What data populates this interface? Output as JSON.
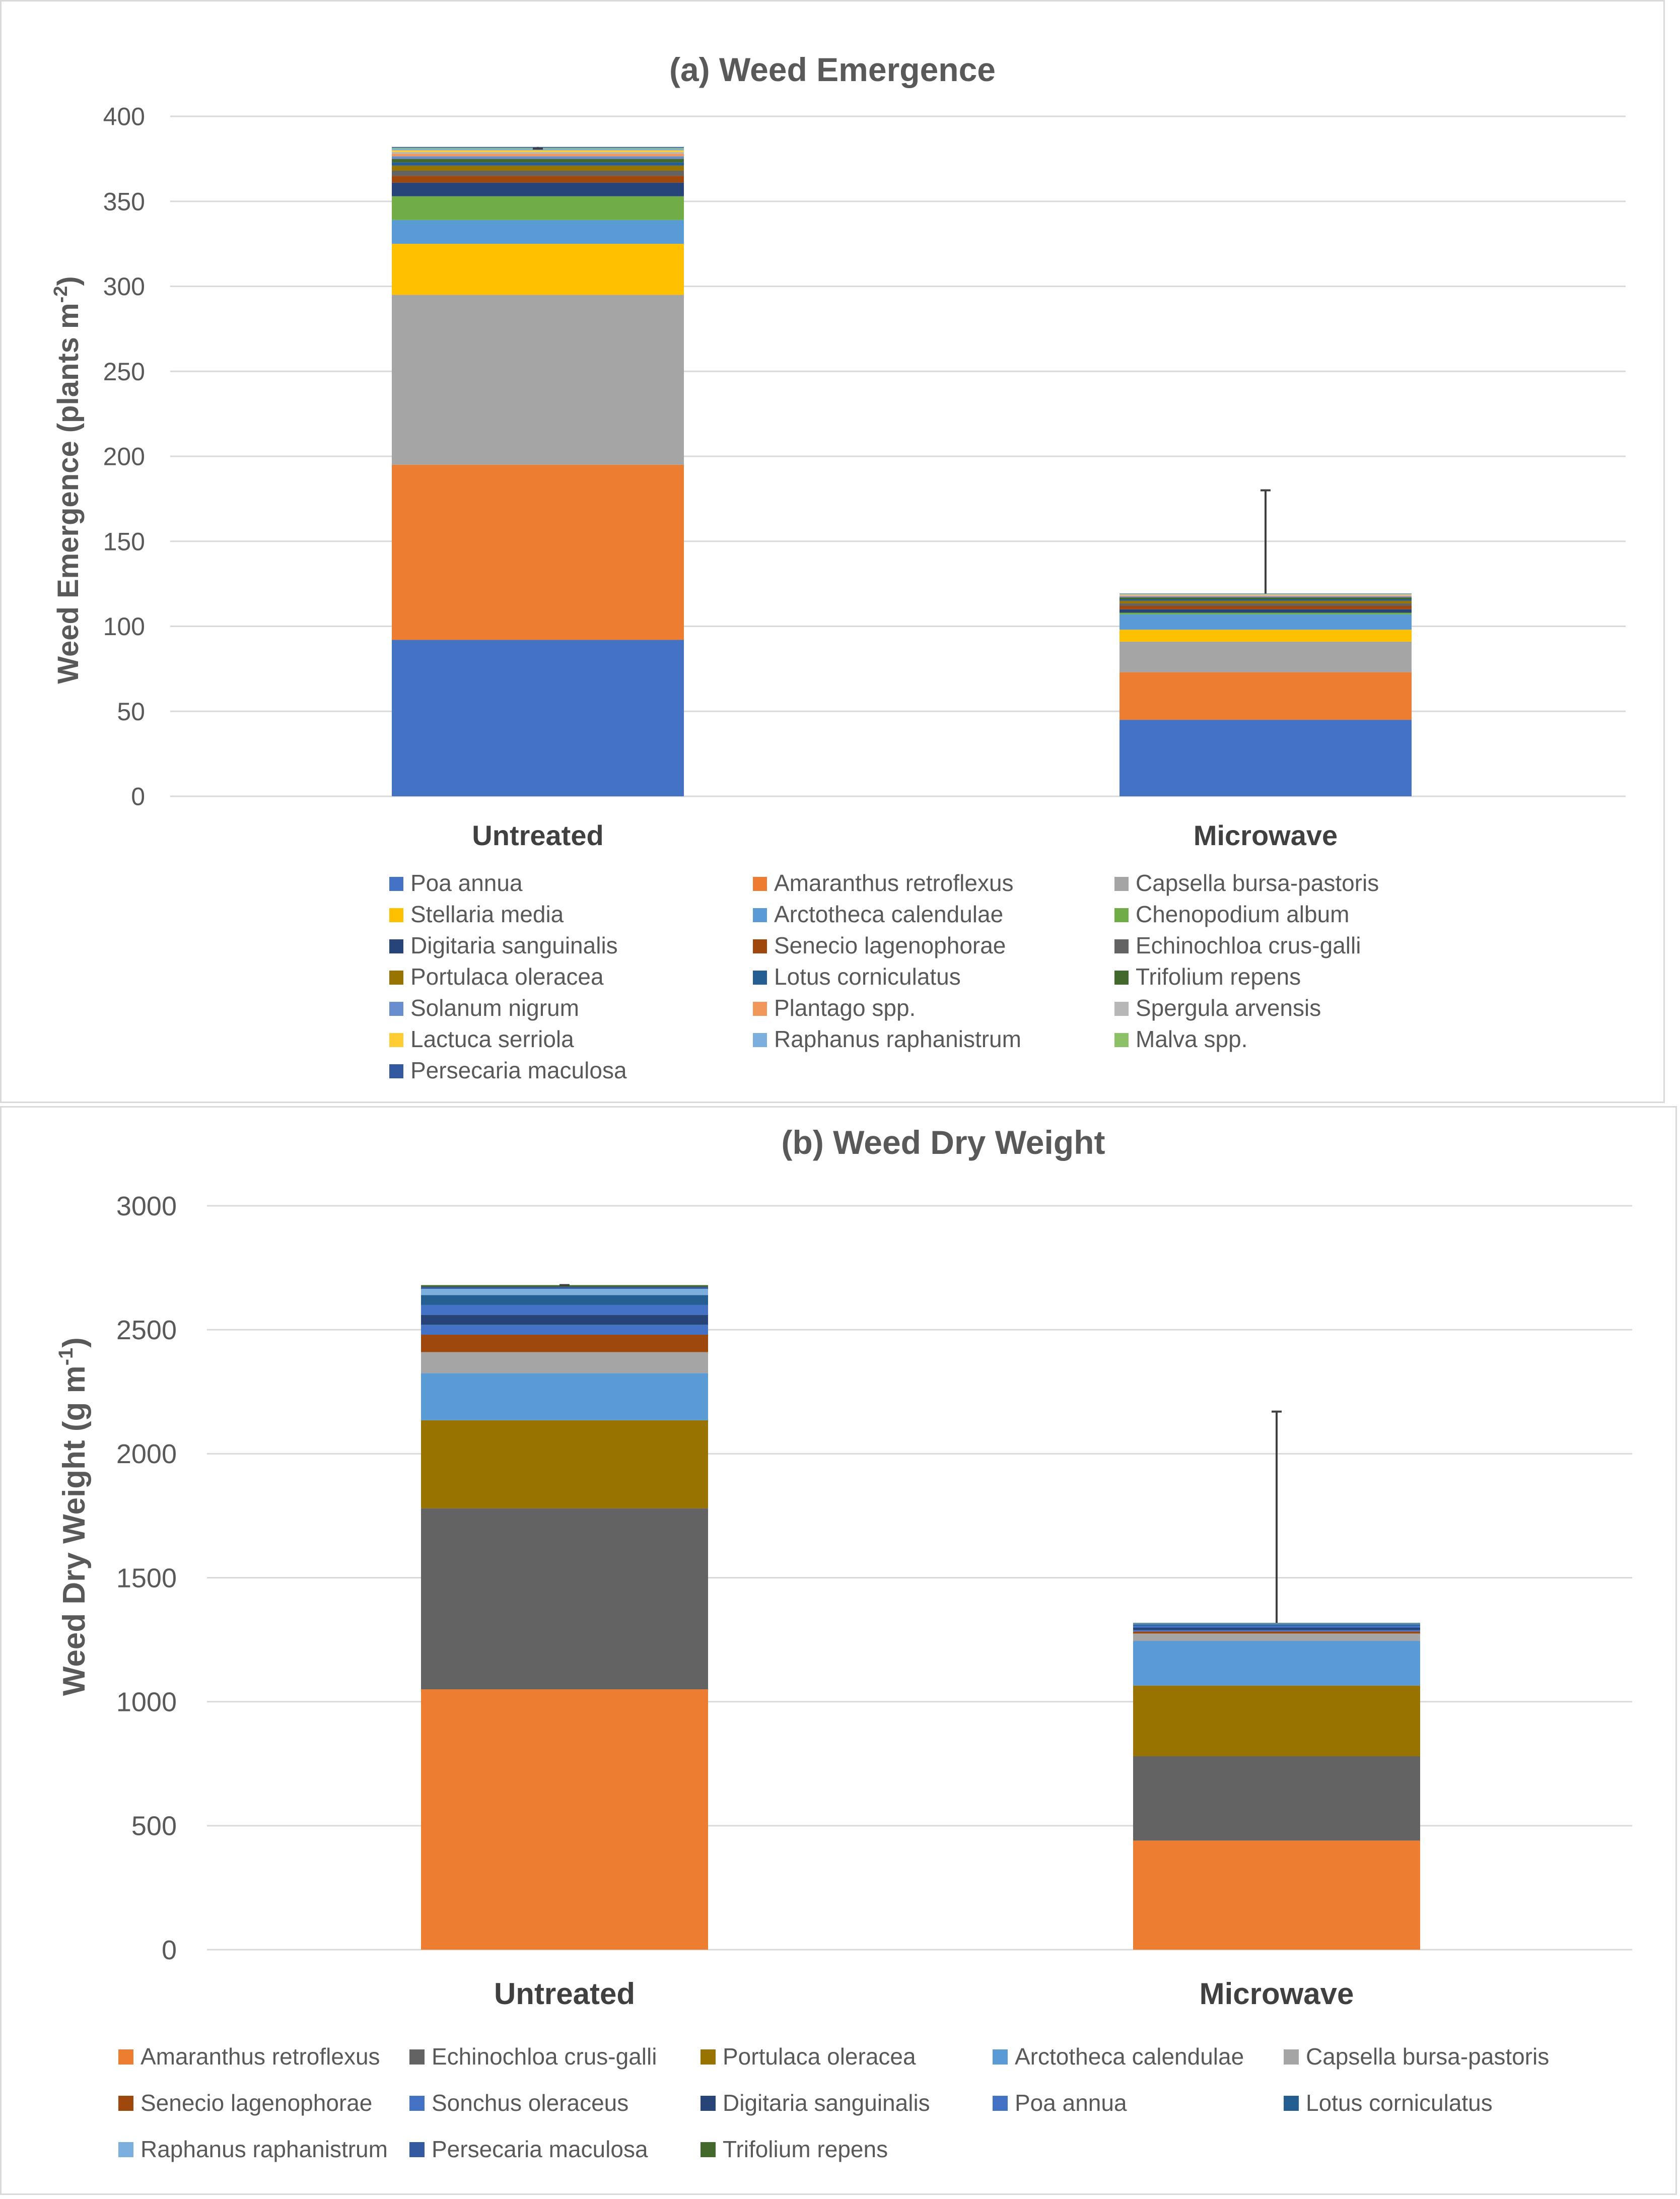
{
  "colors": {
    "poa_annua": "#4472C4",
    "amaranthus_retroflexus": "#ED7D31",
    "capsella_bursa_pastoris": "#A5A5A5",
    "stellaria_media": "#FFC000",
    "arctotheca_calendulae": "#5B9BD5",
    "chenopodium_album": "#70AD47",
    "digitaria_sanguinalis": "#264478",
    "senecio_lagenophorae": "#9E480E",
    "echinochloa_crus_galli": "#636363",
    "portulaca_oleracea": "#997300",
    "lotus_corniculatus": "#255E91",
    "trifolium_repens": "#43682B",
    "solanum_nigrum": "#698ED0",
    "plantago_spp": "#F1975A",
    "spergula_arvensis": "#B7B7B7",
    "lactuca_serriola": "#FFCD33",
    "raphanus_raphanistrum": "#7CAFDD",
    "malva_spp": "#8CC168",
    "persecaria_maculosa": "#335AA1",
    "grid": "#d9d9d9",
    "text": "#595959"
  },
  "chart_data": [
    {
      "type": "bar",
      "stacked": true,
      "title": "(a) Weed Emergence",
      "ylabel": "Weed Emergence (plants m",
      "ylabel_sup": "-2",
      "ylabel_close": ")",
      "ylim": [
        0,
        400
      ],
      "yticks": [
        "0",
        "50",
        "100",
        "150",
        "200",
        "250",
        "300",
        "350",
        "400"
      ],
      "categories": [
        "Untreated",
        "Microwave"
      ],
      "error_bar_upper": [
        381,
        180
      ],
      "legend_position": "bottom",
      "series": [
        {
          "name": "Poa annua",
          "values": [
            92,
            45
          ]
        },
        {
          "name": "Amaranthus retroflexus",
          "values": [
            103,
            28
          ]
        },
        {
          "name": "Capsella bursa-pastoris",
          "values": [
            100,
            18
          ]
        },
        {
          "name": "Stellaria media",
          "values": [
            30,
            7
          ]
        },
        {
          "name": "Arctotheca calendulae",
          "values": [
            14,
            9
          ]
        },
        {
          "name": "Chenopodium album",
          "values": [
            14,
            1
          ]
        },
        {
          "name": "Digitaria sanguinalis",
          "values": [
            8,
            2
          ]
        },
        {
          "name": "Senecio lagenophorae",
          "values": [
            4,
            2
          ]
        },
        {
          "name": "Echinochloa crus-galli",
          "values": [
            3,
            1.5
          ]
        },
        {
          "name": "Portulaca oleracea",
          "values": [
            3,
            1.5
          ]
        },
        {
          "name": "Lotus corniculatus",
          "values": [
            2,
            1
          ]
        },
        {
          "name": "Trifolium repens",
          "values": [
            2,
            1
          ]
        },
        {
          "name": "Solanum nigrum",
          "values": [
            1.5,
            0.5
          ]
        },
        {
          "name": "Plantago spp.",
          "values": [
            1.5,
            0.5
          ]
        },
        {
          "name": "Spergula arvensis",
          "values": [
            1,
            0.3
          ]
        },
        {
          "name": "Lactuca serriola",
          "values": [
            1,
            0.3
          ]
        },
        {
          "name": "Raphanus raphanistrum",
          "values": [
            1,
            0.3
          ]
        },
        {
          "name": "Malva spp.",
          "values": [
            0.5,
            0.2
          ]
        },
        {
          "name": "Persecaria maculosa",
          "values": [
            0.5,
            0.2
          ]
        }
      ]
    },
    {
      "type": "bar",
      "stacked": true,
      "title": "(b) Weed Dry Weight",
      "ylabel": "Weed Dry Weight (g m",
      "ylabel_sup": "-1",
      "ylabel_close": ")",
      "ylim": [
        0,
        3000
      ],
      "yticks": [
        "0",
        "500",
        "1000",
        "1500",
        "2000",
        "2500",
        "3000"
      ],
      "categories": [
        "Untreated",
        "Microwave"
      ],
      "error_bar_upper": [
        2680,
        2170
      ],
      "legend_position": "bottom",
      "series": [
        {
          "name": "Amaranthus retroflexus",
          "values": [
            1050,
            440
          ]
        },
        {
          "name": "Echinochloa crus-galli",
          "values": [
            730,
            340
          ]
        },
        {
          "name": "Portulaca oleracea",
          "values": [
            355,
            285
          ]
        },
        {
          "name": "Arctotheca calendulae",
          "values": [
            190,
            180
          ]
        },
        {
          "name": "Capsella bursa-pastoris",
          "values": [
            85,
            30
          ]
        },
        {
          "name": "Senecio lagenophorae",
          "values": [
            70,
            8
          ]
        },
        {
          "name": "Sonchus oleraceus",
          "values": [
            40,
            6
          ]
        },
        {
          "name": "Digitaria sanguinalis",
          "values": [
            40,
            10
          ]
        },
        {
          "name": "Poa annua",
          "values": [
            40,
            8
          ]
        },
        {
          "name": "Lotus corniculatus",
          "values": [
            40,
            5
          ]
        },
        {
          "name": "Raphanus raphanistrum",
          "values": [
            25,
            3
          ]
        },
        {
          "name": "Persecaria maculosa",
          "values": [
            8,
            2
          ]
        },
        {
          "name": "Trifolium repens",
          "values": [
            7,
            1
          ]
        }
      ]
    }
  ]
}
